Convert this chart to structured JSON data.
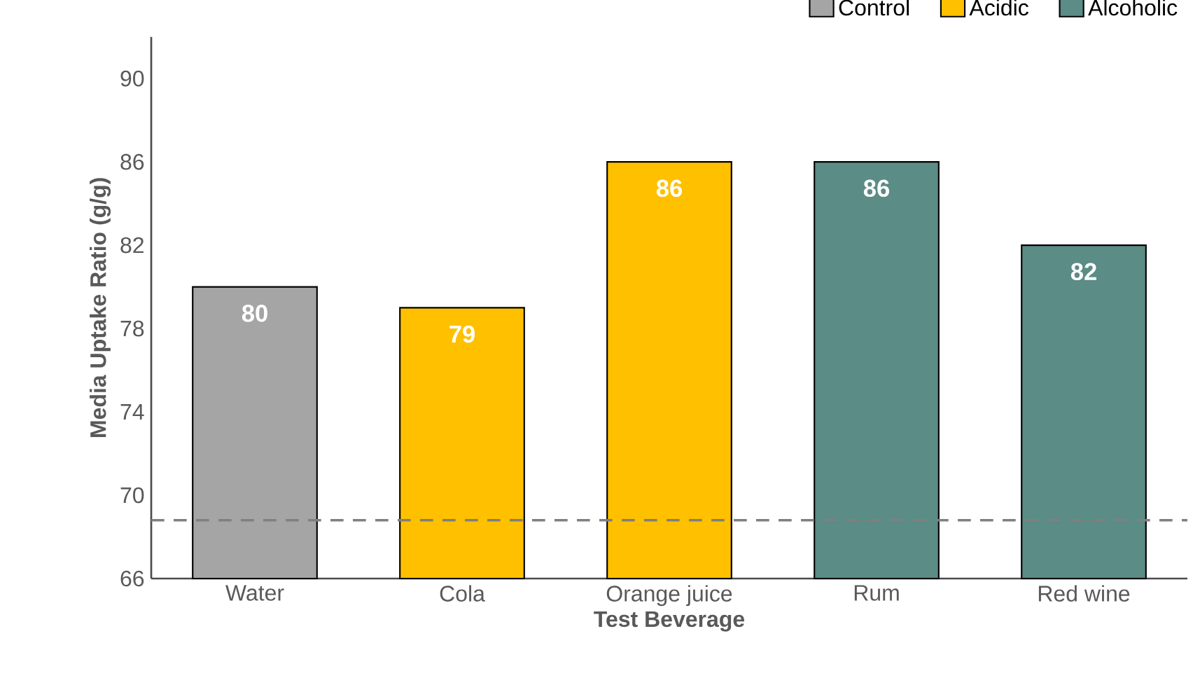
{
  "chart_data": {
    "type": "bar",
    "xlabel": "Test Beverage",
    "ylabel": "Media Uptake Ratio (g/g)",
    "categories": [
      "Water",
      "Cola",
      "Orange juice",
      "Rum",
      "Red wine"
    ],
    "series": [
      {
        "name": "Control",
        "color": "#a5a5a5",
        "values": [
          80,
          null,
          null,
          null,
          null
        ]
      },
      {
        "name": "Acidic",
        "color": "#ffc000",
        "values": [
          null,
          79,
          86,
          null,
          null
        ]
      },
      {
        "name": "Alcoholic",
        "color": "#5b8c85",
        "values": [
          null,
          null,
          null,
          86,
          82
        ]
      }
    ],
    "ylim": [
      66,
      92
    ],
    "yticks": [
      66,
      70,
      74,
      78,
      82,
      86,
      90
    ],
    "ref_lines": [
      {
        "axis": "y",
        "value": 68.8,
        "color": "#808080",
        "line_style": "dashed"
      }
    ],
    "data_labels": true,
    "legend": "top right",
    "grid": false
  }
}
